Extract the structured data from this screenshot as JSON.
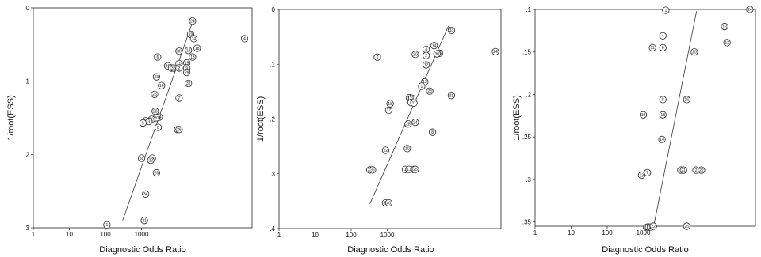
{
  "chart_data": [
    {
      "type": "scatter",
      "title": "",
      "xlabel": "Diagnostic Odds Ratio",
      "ylabel": "1/root(ESS)",
      "x_scale": "log",
      "x_ticks": [
        1,
        10,
        100,
        1000
      ],
      "x_tick_labels": [
        "1",
        "10",
        "100",
        "1000"
      ],
      "y_reversed": true,
      "ylim": [
        0,
        0.3
      ],
      "y_ticks": [
        0,
        0.1,
        0.2,
        0.3
      ],
      "y_tick_labels": [
        "0",
        ".1",
        ".2",
        ".3"
      ],
      "grid": false,
      "points": [
        {
          "label": "24",
          "x": 26000,
          "y": 0.018
        },
        {
          "label": "4",
          "x": 720000,
          "y": 0.042
        },
        {
          "label": "19",
          "x": 23000,
          "y": 0.036
        },
        {
          "label": "14",
          "x": 28000,
          "y": 0.042
        },
        {
          "label": "18",
          "x": 35000,
          "y": 0.055
        },
        {
          "label": "12",
          "x": 20000,
          "y": 0.058
        },
        {
          "label": "30",
          "x": 11000,
          "y": 0.059
        },
        {
          "label": "13",
          "x": 26000,
          "y": 0.067
        },
        {
          "label": "6",
          "x": 2800,
          "y": 0.067
        },
        {
          "label": "10",
          "x": 11000,
          "y": 0.076
        },
        {
          "label": "15",
          "x": 18000,
          "y": 0.075
        },
        {
          "label": "36",
          "x": 5300,
          "y": 0.079
        },
        {
          "label": "33",
          "x": 6800,
          "y": 0.082
        },
        {
          "label": "35",
          "x": 7700,
          "y": 0.082
        },
        {
          "label": "2",
          "x": 11000,
          "y": 0.082
        },
        {
          "label": "9",
          "x": 18000,
          "y": 0.082
        },
        {
          "label": "29",
          "x": 18000,
          "y": 0.088
        },
        {
          "label": "23",
          "x": 2600,
          "y": 0.094
        },
        {
          "label": "32",
          "x": 20000,
          "y": 0.103
        },
        {
          "label": "16",
          "x": 3600,
          "y": 0.106
        },
        {
          "label": "25",
          "x": 2300,
          "y": 0.118
        },
        {
          "label": "7",
          "x": 11000,
          "y": 0.123
        },
        {
          "label": "28",
          "x": 2400,
          "y": 0.141
        },
        {
          "label": "34",
          "x": 3100,
          "y": 0.149
        },
        {
          "label": "20",
          "x": 2600,
          "y": 0.15
        },
        {
          "label": "39",
          "x": 1900,
          "y": 0.152
        },
        {
          "label": "40",
          "x": 1300,
          "y": 0.154
        },
        {
          "label": "3",
          "x": 1600,
          "y": 0.155
        },
        {
          "label": "5",
          "x": 1100,
          "y": 0.157
        },
        {
          "label": "8",
          "x": 2900,
          "y": 0.163
        },
        {
          "label": "27",
          "x": 10000,
          "y": 0.166
        },
        {
          "label": "26",
          "x": 11000,
          "y": 0.166
        },
        {
          "label": "38",
          "x": 1000,
          "y": 0.205
        },
        {
          "label": "21",
          "x": 2000,
          "y": 0.205
        },
        {
          "label": "22",
          "x": 1800,
          "y": 0.208
        },
        {
          "label": "26",
          "x": 2600,
          "y": 0.225
        },
        {
          "label": "34",
          "x": 1300,
          "y": 0.254
        },
        {
          "label": "31",
          "x": 1200,
          "y": 0.29
        },
        {
          "label": "1",
          "x": 110,
          "y": 0.296
        }
      ],
      "regression_line": [
        {
          "x": 300,
          "y": 0.29
        },
        {
          "x": 28000,
          "y": 0.015
        }
      ]
    },
    {
      "type": "scatter",
      "title": "",
      "xlabel": "Diagnostic Odds Ratio",
      "ylabel": "1/root(ESS)",
      "x_scale": "log",
      "x_ticks": [
        1,
        10,
        100,
        1000
      ],
      "x_tick_labels": [
        "1",
        "10",
        "100",
        "1000"
      ],
      "y_reversed": true,
      "ylim": [
        0,
        0.4
      ],
      "y_ticks": [
        0,
        0.1,
        0.2,
        0.3,
        0.4
      ],
      "y_tick_labels": [
        "0",
        ".1",
        ".2",
        ".3",
        ".4"
      ],
      "grid": false,
      "points": [
        {
          "label": "24",
          "x": 1000000,
          "y": 0.077
        },
        {
          "label": "33",
          "x": 60000,
          "y": 0.038
        },
        {
          "label": "14",
          "x": 20000,
          "y": 0.066
        },
        {
          "label": "4",
          "x": 12000,
          "y": 0.073
        },
        {
          "label": "16",
          "x": 28000,
          "y": 0.08
        },
        {
          "label": "30",
          "x": 24000,
          "y": 0.081
        },
        {
          "label": "2",
          "x": 12000,
          "y": 0.084
        },
        {
          "label": "20",
          "x": 6000,
          "y": 0.082
        },
        {
          "label": "6",
          "x": 530,
          "y": 0.087
        },
        {
          "label": "12",
          "x": 12000,
          "y": 0.101
        },
        {
          "label": "13",
          "x": 11000,
          "y": 0.132
        },
        {
          "label": "1",
          "x": 9000,
          "y": 0.14
        },
        {
          "label": "23",
          "x": 15000,
          "y": 0.149
        },
        {
          "label": "31",
          "x": 60000,
          "y": 0.157
        },
        {
          "label": "19",
          "x": 4100,
          "y": 0.161
        },
        {
          "label": "29",
          "x": 4800,
          "y": 0.162
        },
        {
          "label": "5",
          "x": 4600,
          "y": 0.17
        },
        {
          "label": "11",
          "x": 5500,
          "y": 0.171
        },
        {
          "label": "18",
          "x": 1200,
          "y": 0.172
        },
        {
          "label": "17",
          "x": 1100,
          "y": 0.184
        },
        {
          "label": "28",
          "x": 3800,
          "y": 0.209
        },
        {
          "label": "24",
          "x": 6000,
          "y": 0.206
        },
        {
          "label": "8",
          "x": 18000,
          "y": 0.224
        },
        {
          "label": "10",
          "x": 3600,
          "y": 0.254
        },
        {
          "label": "22",
          "x": 900,
          "y": 0.257
        },
        {
          "label": "3",
          "x": 3200,
          "y": 0.292
        },
        {
          "label": "21",
          "x": 5400,
          "y": 0.292
        },
        {
          "label": "25",
          "x": 6000,
          "y": 0.292
        },
        {
          "label": "11",
          "x": 4000,
          "y": 0.292
        },
        {
          "label": "26",
          "x": 330,
          "y": 0.293
        },
        {
          "label": "36",
          "x": 390,
          "y": 0.293
        },
        {
          "label": "35",
          "x": 900,
          "y": 0.353
        },
        {
          "label": "40",
          "x": 1100,
          "y": 0.353
        }
      ],
      "regression_line": [
        {
          "x": 330,
          "y": 0.355
        },
        {
          "x": 50000,
          "y": 0.03
        }
      ]
    },
    {
      "type": "scatter",
      "title": "",
      "xlabel": "Diagnostic Odds Ratio",
      "ylabel": "1/root(ESS)",
      "x_scale": "log",
      "x_ticks": [
        1,
        10,
        100,
        1000
      ],
      "x_tick_labels": [
        "1",
        "10",
        "100",
        "1000"
      ],
      "y_reversed": true,
      "ylim": [
        0.1,
        0.355
      ],
      "y_ticks": [
        0.1,
        0.15,
        0.2,
        0.25,
        0.3,
        0.35
      ],
      "y_tick_labels": [
        ".1",
        ".15",
        ".2",
        ".25",
        ".3",
        ".35"
      ],
      "grid": false,
      "points": [
        {
          "label": "24",
          "x": 900000,
          "y": 0.1
        },
        {
          "label": "1",
          "x": 4200,
          "y": 0.101
        },
        {
          "label": "13",
          "x": 180000,
          "y": 0.12
        },
        {
          "label": "4",
          "x": 3500,
          "y": 0.131
        },
        {
          "label": "12",
          "x": 210000,
          "y": 0.139
        },
        {
          "label": "11",
          "x": 1800,
          "y": 0.145
        },
        {
          "label": "6",
          "x": 3500,
          "y": 0.145
        },
        {
          "label": "20",
          "x": 26000,
          "y": 0.15
        },
        {
          "label": "8",
          "x": 3500,
          "y": 0.206
        },
        {
          "label": "16",
          "x": 16000,
          "y": 0.206
        },
        {
          "label": "19",
          "x": 1000,
          "y": 0.224
        },
        {
          "label": "18",
          "x": 3500,
          "y": 0.224
        },
        {
          "label": "14",
          "x": 3300,
          "y": 0.253
        },
        {
          "label": "3",
          "x": 11000,
          "y": 0.289
        },
        {
          "label": "21",
          "x": 13000,
          "y": 0.289
        },
        {
          "label": "2",
          "x": 29000,
          "y": 0.289
        },
        {
          "label": "22",
          "x": 41000,
          "y": 0.289
        },
        {
          "label": "7",
          "x": 1300,
          "y": 0.292
        },
        {
          "label": "13",
          "x": 900,
          "y": 0.295
        },
        {
          "label": "31",
          "x": 1300,
          "y": 0.356
        },
        {
          "label": "17",
          "x": 1400,
          "y": 0.356
        },
        {
          "label": "17",
          "x": 1600,
          "y": 0.356
        },
        {
          "label": "22",
          "x": 1900,
          "y": 0.355
        },
        {
          "label": "25",
          "x": 16000,
          "y": 0.355
        }
      ],
      "regression_line": [
        {
          "x": 1900,
          "y": 0.357
        },
        {
          "x": 30000,
          "y": 0.102
        }
      ]
    }
  ]
}
